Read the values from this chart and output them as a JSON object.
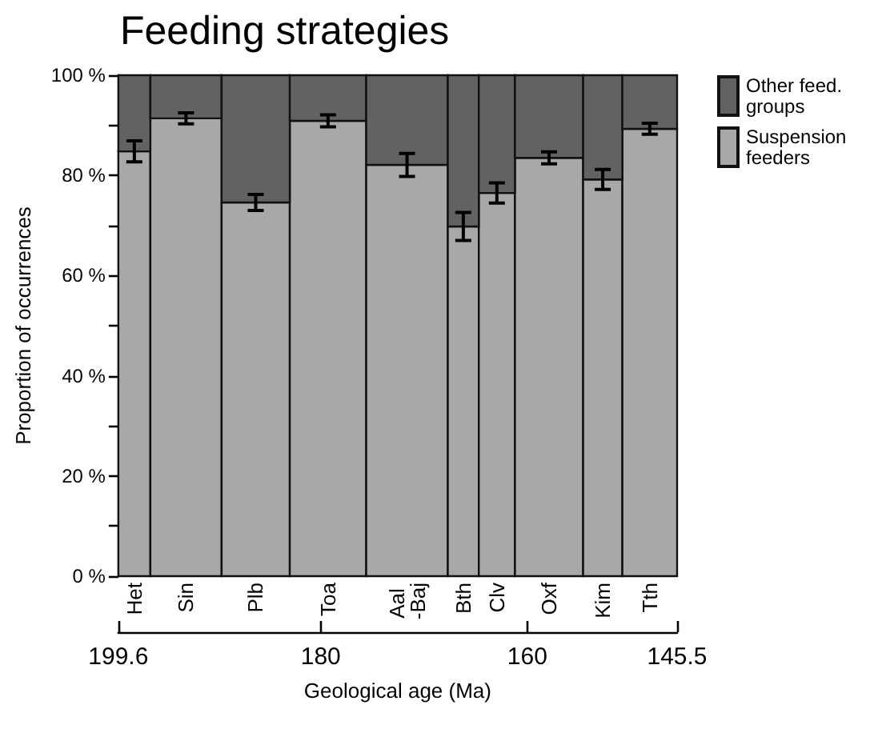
{
  "chart_data": {
    "type": "bar",
    "title": "Feeding strategies",
    "xlabel": "Geological age (Ma)",
    "ylabel": "Proportion of occurrences",
    "x": [
      198.05,
      193.05,
      186.3,
      179.3,
      171.65,
      166.2,
      162.95,
      157.9,
      152.7,
      148.15
    ],
    "stacked": true,
    "series": [
      {
        "name": "Suspension feeders",
        "color": "#a8a8a8",
        "values": [
          84.8,
          91.4,
          74.6,
          90.9,
          82.1,
          69.8,
          76.5,
          83.5,
          79.2,
          89.3
        ],
        "errors": [
          2.1,
          1.1,
          1.6,
          1.2,
          2.3,
          2.8,
          2.0,
          1.2,
          2.0,
          1.1
        ]
      },
      {
        "name": "Other feed. groups",
        "color": "#626262",
        "values": [
          15.2,
          8.6,
          25.4,
          9.1,
          17.9,
          30.2,
          23.5,
          16.5,
          20.8,
          10.7
        ]
      }
    ],
    "annotations": [
      "Het",
      "Sin",
      "Plb",
      "Toa",
      "Aal -Baj",
      "Bth",
      "Clv",
      "Oxf",
      "Kim",
      "Tth"
    ],
    "xlim": [
      199.6,
      145.5
    ],
    "xticks": [
      199.6,
      180,
      160,
      145.5
    ],
    "ylim": [
      0,
      100
    ],
    "yticks": [
      {
        "value": 0,
        "label": "0 %"
      },
      {
        "value": 10,
        "label": null
      },
      {
        "value": 20,
        "label": "20 %"
      },
      {
        "value": 30,
        "label": null
      },
      {
        "value": 40,
        "label": "40 %"
      },
      {
        "value": 50,
        "label": null
      },
      {
        "value": 60,
        "label": "60 %"
      },
      {
        "value": 70,
        "label": null
      },
      {
        "value": 80,
        "label": "80 %"
      },
      {
        "value": 90,
        "label": null
      },
      {
        "value": 100,
        "label": "100 %"
      }
    ],
    "legend": "top right"
  }
}
